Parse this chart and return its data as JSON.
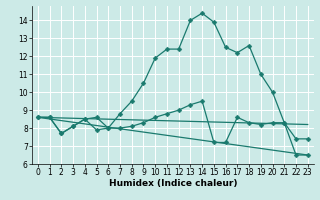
{
  "xlabel": "Humidex (Indice chaleur)",
  "background_color": "#cceae7",
  "grid_color": "#ffffff",
  "line_color": "#1a7a6e",
  "xlim": [
    -0.5,
    23.5
  ],
  "ylim": [
    6,
    14.8
  ],
  "yticks": [
    6,
    7,
    8,
    9,
    10,
    11,
    12,
    13,
    14
  ],
  "xticks": [
    0,
    1,
    2,
    3,
    4,
    5,
    6,
    7,
    8,
    9,
    10,
    11,
    12,
    13,
    14,
    15,
    16,
    17,
    18,
    19,
    20,
    21,
    22,
    23
  ],
  "line1_x": [
    0,
    1,
    2,
    3,
    4,
    5,
    6,
    7,
    8,
    9,
    10,
    11,
    12,
    13,
    14,
    15,
    16,
    17,
    18,
    19,
    20,
    21,
    22,
    23
  ],
  "line1_y": [
    8.6,
    8.6,
    7.7,
    8.1,
    8.5,
    8.6,
    8.0,
    8.8,
    9.5,
    10.5,
    11.9,
    12.4,
    12.4,
    14.0,
    14.4,
    13.9,
    12.5,
    12.2,
    12.6,
    11.0,
    10.0,
    8.3,
    7.4,
    7.4
  ],
  "line2_x": [
    0,
    1,
    2,
    3,
    4,
    5,
    6,
    7,
    8,
    9,
    10,
    11,
    12,
    13,
    14,
    15,
    16,
    17,
    18,
    19,
    20,
    21,
    22,
    23
  ],
  "line2_y": [
    8.6,
    8.6,
    7.7,
    8.1,
    8.5,
    7.9,
    8.0,
    8.0,
    8.1,
    8.3,
    8.6,
    8.8,
    9.0,
    9.3,
    9.5,
    7.2,
    7.2,
    8.6,
    8.3,
    8.2,
    8.3,
    8.3,
    6.5,
    6.5
  ],
  "line3_x": [
    0,
    23
  ],
  "line3_y": [
    8.6,
    8.2
  ],
  "line4_x": [
    0,
    23
  ],
  "line4_y": [
    8.6,
    6.5
  ],
  "marker_size": 2.5,
  "linewidth": 0.9,
  "xlabel_fontsize": 6.5,
  "tick_fontsize": 5.5
}
